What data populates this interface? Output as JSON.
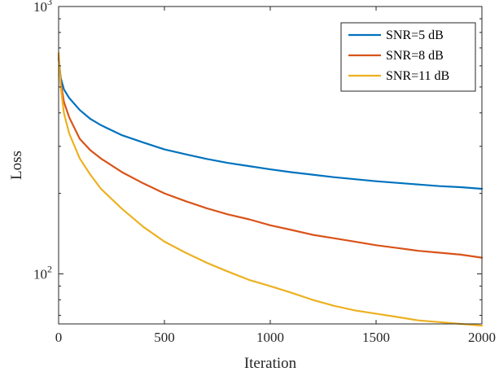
{
  "chart_data": {
    "type": "line",
    "title": "",
    "xlabel": "Iteration",
    "ylabel": "Loss",
    "xlim": [
      0,
      2000
    ],
    "ylim": [
      65,
      1000
    ],
    "yscale": "log",
    "grid": false,
    "legend_position": "top-right",
    "x_ticks": [
      "0",
      "500",
      "1000",
      "1500",
      "2000"
    ],
    "y_ticks": [
      {
        "value": 100,
        "base": "10",
        "exp": "2"
      },
      {
        "value": 1000,
        "base": "10",
        "exp": "3"
      }
    ],
    "x": [
      0,
      10,
      25,
      50,
      100,
      150,
      200,
      300,
      400,
      500,
      600,
      700,
      800,
      900,
      1000,
      1100,
      1200,
      1300,
      1400,
      1500,
      1600,
      1700,
      1800,
      1900,
      2000
    ],
    "series": [
      {
        "name": "SNR=5 dB",
        "color": "#0072BD",
        "values": [
          645,
          540,
          490,
          455,
          410,
          380,
          360,
          330,
          310,
          292,
          280,
          269,
          260,
          253,
          246,
          240,
          235,
          230,
          226,
          222,
          219,
          216,
          213,
          211,
          208
        ]
      },
      {
        "name": "SNR=8 dB",
        "color": "#D95319",
        "values": [
          660,
          520,
          440,
          385,
          320,
          290,
          270,
          240,
          218,
          200,
          187,
          176,
          167,
          160,
          152,
          146,
          140,
          136,
          132,
          128,
          125,
          122,
          120,
          118,
          115
        ]
      },
      {
        "name": "SNR=11 dB",
        "color": "#EDB120",
        "values": [
          670,
          500,
          400,
          335,
          270,
          235,
          208,
          175,
          150,
          132,
          120,
          110,
          102,
          95,
          90,
          85,
          80,
          76,
          73,
          71,
          69,
          67,
          66,
          65,
          64
        ]
      }
    ]
  }
}
